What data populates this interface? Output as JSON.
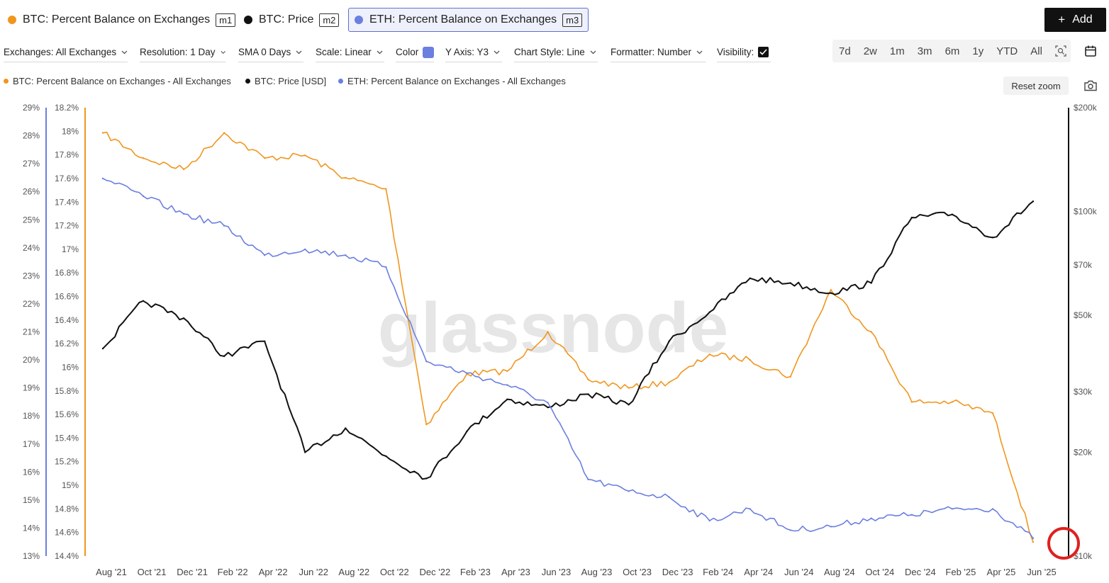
{
  "metric_tabs": [
    {
      "label": "BTC: Percent Balance on Exchanges",
      "tag": "m1",
      "color": "#f0961e"
    },
    {
      "label": "BTC: Price",
      "tag": "m2",
      "color": "#111111"
    },
    {
      "label": "ETH: Percent Balance on Exchanges",
      "tag": "m3",
      "color": "#6b7fe0"
    }
  ],
  "add_label": "Add",
  "controls": {
    "exchanges": "Exchanges: All Exchanges",
    "resolution": "Resolution: 1 Day",
    "sma": "SMA 0 Days",
    "scale": "Scale: Linear",
    "color_label": "Color",
    "color_value": "#6b7fe0",
    "yaxis": "Y Axis: Y3",
    "chart_style": "Chart Style: Line",
    "formatter": "Formatter: Number",
    "visibility_label": "Visibility:"
  },
  "time_ranges": [
    "7d",
    "2w",
    "1m",
    "3m",
    "6m",
    "1y",
    "YTD",
    "All"
  ],
  "reset_zoom_label": "Reset zoom",
  "watermark": "glassnode",
  "chart_data": {
    "type": "line",
    "x": [
      "Aug '21",
      "Oct '21",
      "Dec '21",
      "Feb '22",
      "Apr '22",
      "Jun '22",
      "Aug '22",
      "Oct '22",
      "Dec '22",
      "Feb '23",
      "Apr '23",
      "Jun '23",
      "Aug '23",
      "Oct '23",
      "Dec '23",
      "Feb '24",
      "Apr '24",
      "Jun '24",
      "Aug '24",
      "Oct '24",
      "Dec '24",
      "Feb '25",
      "Apr '25",
      "Jun '25"
    ],
    "x_ticks": [
      "Aug '21",
      "Oct '21",
      "Dec '21",
      "Feb '22",
      "Apr '22",
      "Jun '22",
      "Aug '22",
      "Oct '22",
      "Dec '22",
      "Feb '23",
      "Apr '23",
      "Jun '23",
      "Aug '23",
      "Oct '23",
      "Dec '23",
      "Feb '24",
      "Apr '24",
      "Jun '24",
      "Aug '24",
      "Oct '24",
      "Dec '24",
      "Feb '25",
      "Apr '25",
      "Jun '25"
    ],
    "series": [
      {
        "name": "BTC: Percent Balance on Exchanges - All Exchanges",
        "axis": "y1",
        "color": "#f0961e",
        "values": [
          28.1,
          27.2,
          26.8,
          28.1,
          27.2,
          27.3,
          26.5,
          26.1,
          17.7,
          19.5,
          19.6,
          21.0,
          19.3,
          19.0,
          19.2,
          20.2,
          20.0,
          19.4,
          22.5,
          21.0,
          18.5,
          18.5,
          18.1,
          13.5
        ]
      },
      {
        "name": "BTC: Price [USD]",
        "axis": "y3",
        "color": "#111111",
        "values": [
          40000,
          55000,
          49000,
          38000,
          42000,
          20000,
          23500,
          19500,
          16800,
          23000,
          28500,
          27000,
          29500,
          27500,
          42000,
          51000,
          64000,
          62000,
          58000,
          62000,
          96000,
          98000,
          84000,
          107000
        ]
      },
      {
        "name": "ETH: Percent Balance on Exchanges - All Exchanges",
        "axis": "y2",
        "color": "#6b7fe0",
        "values": [
          17.6,
          17.45,
          17.3,
          17.2,
          16.95,
          17.0,
          16.95,
          16.85,
          16.05,
          15.95,
          15.85,
          15.7,
          15.05,
          14.95,
          14.9,
          14.7,
          14.8,
          14.62,
          14.65,
          14.72,
          14.75,
          14.8,
          14.8,
          14.55
        ]
      }
    ],
    "y1_ticks": [
      "29%",
      "28%",
      "27%",
      "26%",
      "25%",
      "24%",
      "23%",
      "22%",
      "21%",
      "20%",
      "19%",
      "18%",
      "17%",
      "16%",
      "15%",
      "14%",
      "13%"
    ],
    "y1_range": [
      13,
      29
    ],
    "y2_ticks": [
      "18.2%",
      "18%",
      "17.8%",
      "17.6%",
      "17.4%",
      "17.2%",
      "17%",
      "16.8%",
      "16.6%",
      "16.4%",
      "16.2%",
      "16%",
      "15.8%",
      "15.6%",
      "15.4%",
      "15.2%",
      "15%",
      "14.8%",
      "14.6%",
      "14.4%"
    ],
    "y2_range": [
      14.4,
      18.2
    ],
    "y3_ticks": [
      "$200k",
      "$100k",
      "$70k",
      "$50k",
      "$30k",
      "$20k",
      "$10k"
    ],
    "y3_range": [
      10000,
      200000
    ],
    "y3_scale": "log",
    "legend_position": "top-left",
    "annotation": "red circle highlighting the most recent values"
  }
}
